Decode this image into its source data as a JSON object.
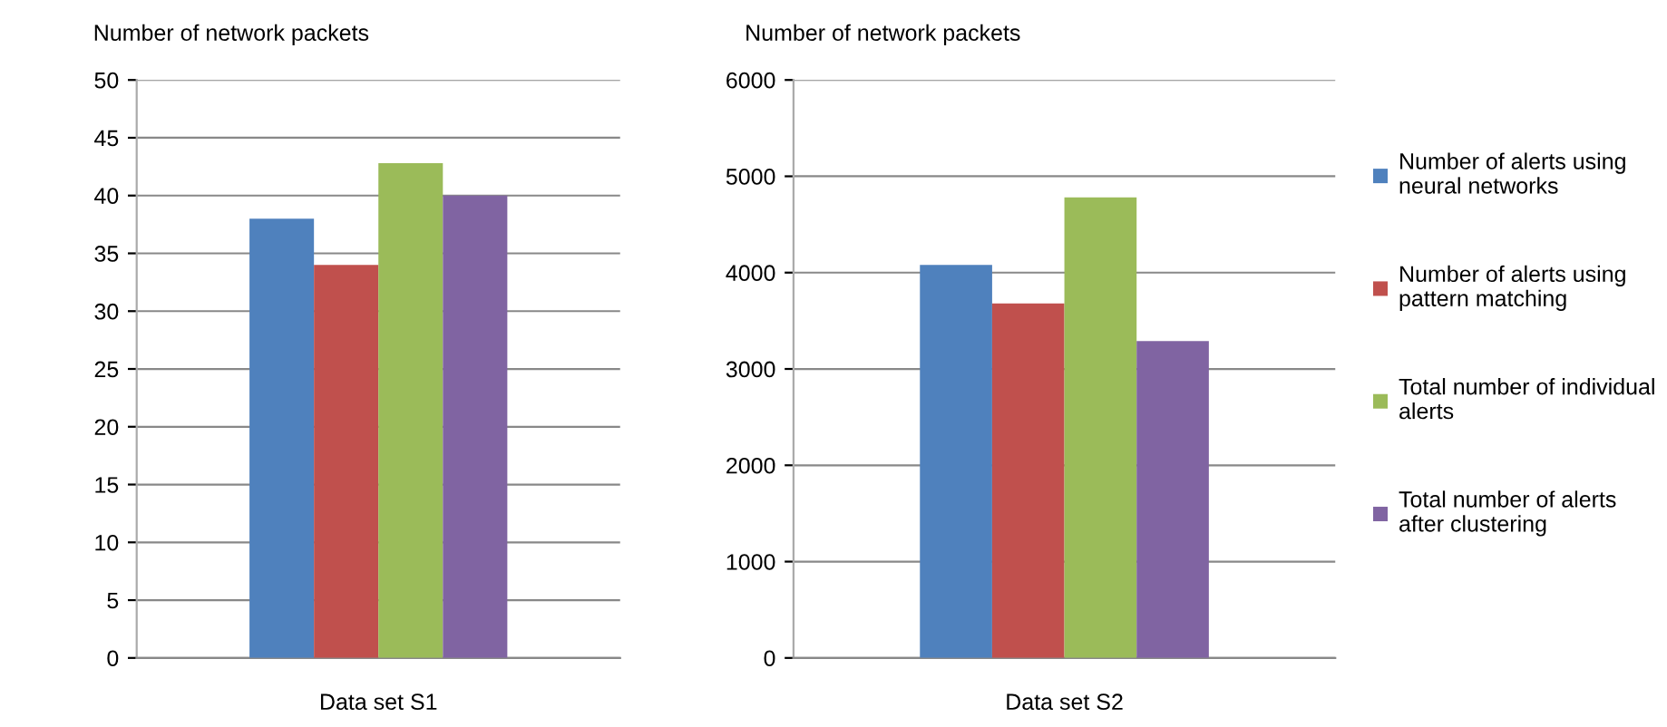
{
  "chart_data": [
    {
      "type": "bar",
      "ylabel": "Number of network packets",
      "categories": [
        "Data set S1"
      ],
      "ylim": [
        0,
        50
      ],
      "yticks": [
        0,
        5,
        10,
        15,
        20,
        25,
        30,
        35,
        40,
        45,
        50
      ],
      "grid": "y",
      "legend": false,
      "series": [
        {
          "color": "#4f81bd",
          "values": [
            38
          ]
        },
        {
          "color": "#c0504d",
          "values": [
            34
          ]
        },
        {
          "color": "#9bbb59",
          "values": [
            42.8
          ]
        },
        {
          "color": "#8064a2",
          "values": [
            40
          ]
        }
      ]
    },
    {
      "type": "bar",
      "ylabel": "Number of network packets",
      "categories": [
        "Data set S2"
      ],
      "ylim": [
        0,
        6000
      ],
      "yticks": [
        0,
        1000,
        2000,
        3000,
        4000,
        5000,
        6000
      ],
      "grid": "y",
      "legend": "right",
      "series": [
        {
          "name": "Number of alerts using neural networks",
          "color": "#4f81bd",
          "values": [
            4080
          ]
        },
        {
          "name": "Number of alerts using pattern matching",
          "color": "#c0504d",
          "values": [
            3680
          ]
        },
        {
          "name": "Total number of individual alerts",
          "color": "#9bbb59",
          "values": [
            4780
          ]
        },
        {
          "name": "Total number of alerts after clustering",
          "color": "#8064a2",
          "values": [
            3290
          ]
        }
      ]
    }
  ]
}
